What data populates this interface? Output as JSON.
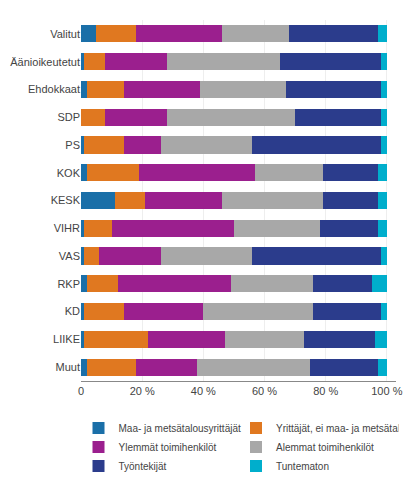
{
  "chart_data": {
    "type": "bar",
    "orientation": "horizontal",
    "stacked": true,
    "categories": [
      "Valitut",
      "Äänioikeutetut",
      "Ehdokkaat",
      "SDP",
      "PS",
      "KOK",
      "KESK",
      "VIHR",
      "VAS",
      "RKP",
      "KD",
      "LIIKE",
      "Muut"
    ],
    "series": [
      {
        "name": "Maa- ja metsätalousyrittäjät",
        "color": "#1A6FA8",
        "values": [
          5,
          1,
          2,
          0,
          1,
          2,
          11,
          1,
          1,
          2,
          1,
          1,
          2
        ]
      },
      {
        "name": "Yrittäjät, ei maa- ja metsätal",
        "color": "#E07820",
        "values": [
          13,
          7,
          12,
          8,
          13,
          17,
          10,
          9,
          5,
          10,
          13,
          21,
          16
        ]
      },
      {
        "name": "Ylemmät toimihenkilöt",
        "color": "#9B1F8E",
        "values": [
          28,
          20,
          25,
          20,
          12,
          38,
          25,
          40,
          20,
          37,
          26,
          25,
          20
        ]
      },
      {
        "name": "Alemmat toimihenkilöt",
        "color": "#A8A8A8",
        "values": [
          22,
          37,
          28,
          42,
          30,
          22,
          33,
          28,
          30,
          27,
          36,
          26,
          37
        ]
      },
      {
        "name": "Työntekijät",
        "color": "#2B3C8C",
        "values": [
          29,
          33,
          31,
          28,
          42,
          18,
          18,
          19,
          42,
          19,
          22,
          23,
          22
        ]
      },
      {
        "name": "Tuntematon",
        "color": "#00AECC",
        "values": [
          3,
          2,
          2,
          2,
          2,
          3,
          3,
          3,
          2,
          5,
          2,
          4,
          3
        ]
      }
    ],
    "xlim": [
      0,
      103
    ],
    "xticks": [
      0,
      {
        "value": 20,
        "label": "20 %"
      },
      {
        "value": 40,
        "label": "40 %"
      },
      {
        "value": 60,
        "label": "60 %"
      },
      {
        "value": 80,
        "label": "80 %"
      },
      {
        "value": 100,
        "label": "100 %"
      }
    ],
    "grid": true,
    "legend": "bottom"
  }
}
